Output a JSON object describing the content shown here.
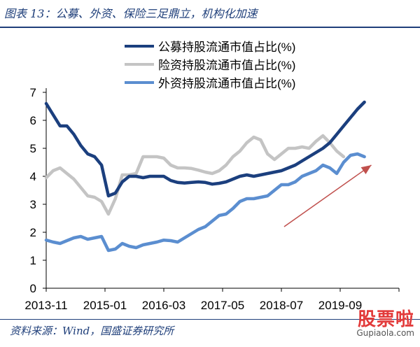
{
  "figure": {
    "title": "图表 13：公募、外资、保险三足鼎立，机构化加速",
    "source": "资料来源：Wind，国盛证券研究所"
  },
  "watermark": {
    "logo_text": "股票啦",
    "url_text": "Gupiaola.com"
  },
  "chart_data": {
    "type": "line",
    "title": "",
    "xlabel": "",
    "ylabel": "",
    "ylim": [
      0,
      7
    ],
    "yticks": [
      0,
      1,
      2,
      3,
      4,
      5,
      6,
      7
    ],
    "xticks": [
      "2013-11",
      "2015-01",
      "2016-03",
      "2017-05",
      "2018-07",
      "2019-09"
    ],
    "grid": false,
    "legend_position": "top-center",
    "x": [
      0,
      0.5,
      1,
      1.5,
      2,
      2.5,
      3,
      3.5,
      4,
      4.5,
      5,
      5.5,
      6,
      6.5,
      7,
      7.5,
      8,
      8.5,
      9,
      9.5,
      10,
      10.5,
      11,
      11.5,
      12,
      12.5,
      13,
      13.5,
      14,
      14.5,
      15,
      15.5,
      16,
      16.5,
      17,
      17.5,
      18,
      18.5,
      19,
      19.5,
      20,
      20.5,
      21,
      21.5,
      22,
      22.5,
      23,
      23.5,
      24,
      24.5,
      25,
      25.5
    ],
    "series": [
      {
        "name": "公募持股流通市值占比(%)",
        "color": "#1b3f7e",
        "values": [
          6.6,
          6.2,
          5.8,
          5.8,
          5.5,
          5.1,
          4.8,
          4.7,
          4.4,
          3.3,
          3.4,
          3.8,
          4.0,
          4.0,
          3.95,
          4.0,
          4.0,
          4.0,
          3.85,
          3.78,
          3.76,
          3.78,
          3.8,
          3.78,
          3.72,
          3.75,
          3.8,
          3.9,
          4.0,
          4.05,
          4.0,
          4.05,
          4.1,
          4.15,
          4.2,
          4.3,
          4.4,
          4.55,
          4.7,
          4.85,
          5.0,
          5.2,
          5.5,
          5.8,
          6.1,
          6.4,
          6.65,
          null,
          null,
          null,
          null,
          null
        ]
      },
      {
        "name": "险资持股流通市值占比(%)",
        "color": "#c4c4c4",
        "values": [
          3.95,
          4.2,
          4.3,
          4.1,
          3.9,
          3.6,
          3.3,
          3.25,
          3.1,
          2.65,
          3.2,
          4.05,
          4.05,
          4.1,
          4.7,
          4.7,
          4.7,
          4.65,
          4.4,
          4.3,
          4.3,
          4.28,
          4.22,
          4.15,
          4.1,
          4.2,
          4.4,
          4.7,
          4.9,
          5.2,
          5.4,
          5.3,
          4.8,
          4.6,
          4.8,
          5.0,
          5.0,
          5.05,
          5.0,
          5.25,
          5.45,
          5.2,
          4.9,
          4.7,
          null,
          null,
          null,
          null,
          null,
          null,
          null,
          null
        ]
      },
      {
        "name": "外资持股流通市值占比(%)",
        "color": "#5b8ed0",
        "values": [
          1.72,
          1.65,
          1.6,
          1.7,
          1.8,
          1.85,
          1.75,
          1.8,
          1.85,
          1.35,
          1.4,
          1.6,
          1.5,
          1.45,
          1.55,
          1.6,
          1.65,
          1.72,
          1.7,
          1.65,
          1.8,
          1.95,
          2.1,
          2.2,
          2.4,
          2.6,
          2.65,
          2.85,
          3.1,
          3.2,
          3.2,
          3.25,
          3.3,
          3.5,
          3.7,
          3.7,
          3.8,
          4.0,
          4.1,
          4.2,
          4.4,
          4.3,
          4.1,
          4.5,
          4.75,
          4.8,
          4.7,
          null,
          null,
          null,
          null,
          null
        ]
      }
    ],
    "annotations": [
      {
        "type": "arrow",
        "color": "#c0504d",
        "from": [
          17.2,
          2.2
        ],
        "to": [
          23.5,
          4.4
        ]
      }
    ]
  }
}
